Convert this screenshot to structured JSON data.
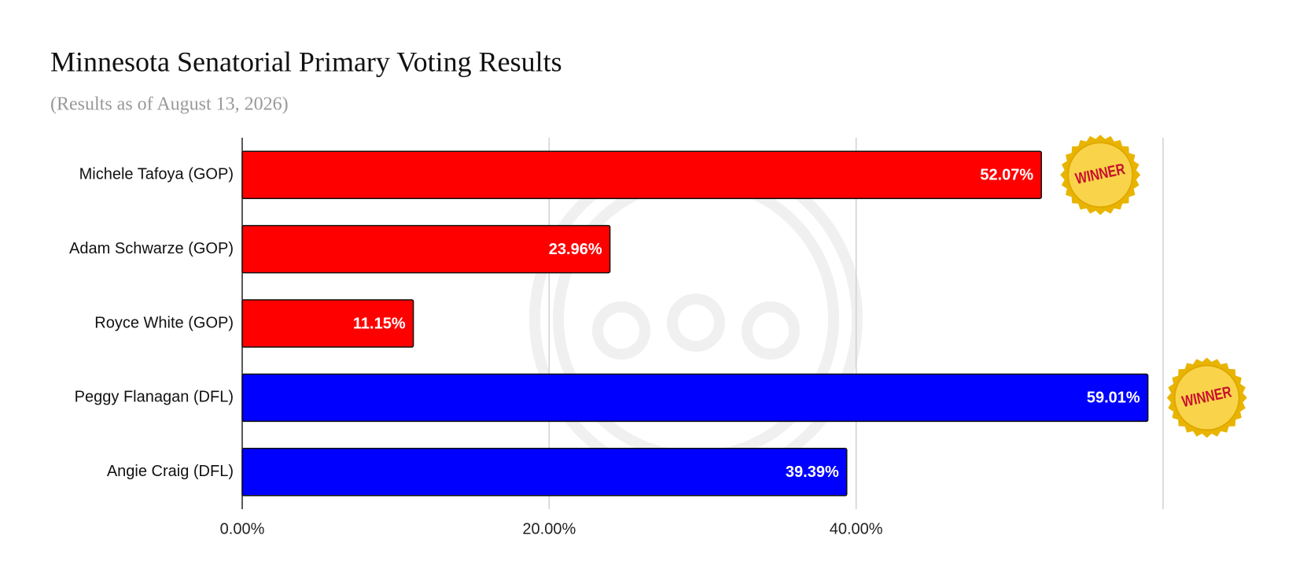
{
  "chart_data": {
    "type": "barh",
    "title": "Minnesota Senatorial Primary Voting Results",
    "subtitle": "(Results as of August 13, 2026)",
    "categories": [
      "Michele Tafoya (GOP)",
      "Adam Schwarze (GOP)",
      "Royce White (GOP)",
      "Peggy Flanagan (DFL)",
      "Angie Craig (DFL)"
    ],
    "values": [
      52.07,
      23.96,
      11.15,
      59.01,
      39.39
    ],
    "value_labels": [
      "52.07%",
      "23.96%",
      "11.15%",
      "59.01%",
      "39.39%"
    ],
    "colors": [
      "#ff0000",
      "#ff0000",
      "#ff0000",
      "#0000ff",
      "#0000ff"
    ],
    "annotations": [
      "WINNER",
      null,
      null,
      "WINNER",
      null
    ],
    "xlim": [
      0,
      60
    ],
    "xticks": [
      {
        "value": 0,
        "label": "0.00%"
      },
      {
        "value": 20,
        "label": "20.00%"
      },
      {
        "value": 40,
        "label": "40.00%"
      }
    ],
    "grid": true
  }
}
